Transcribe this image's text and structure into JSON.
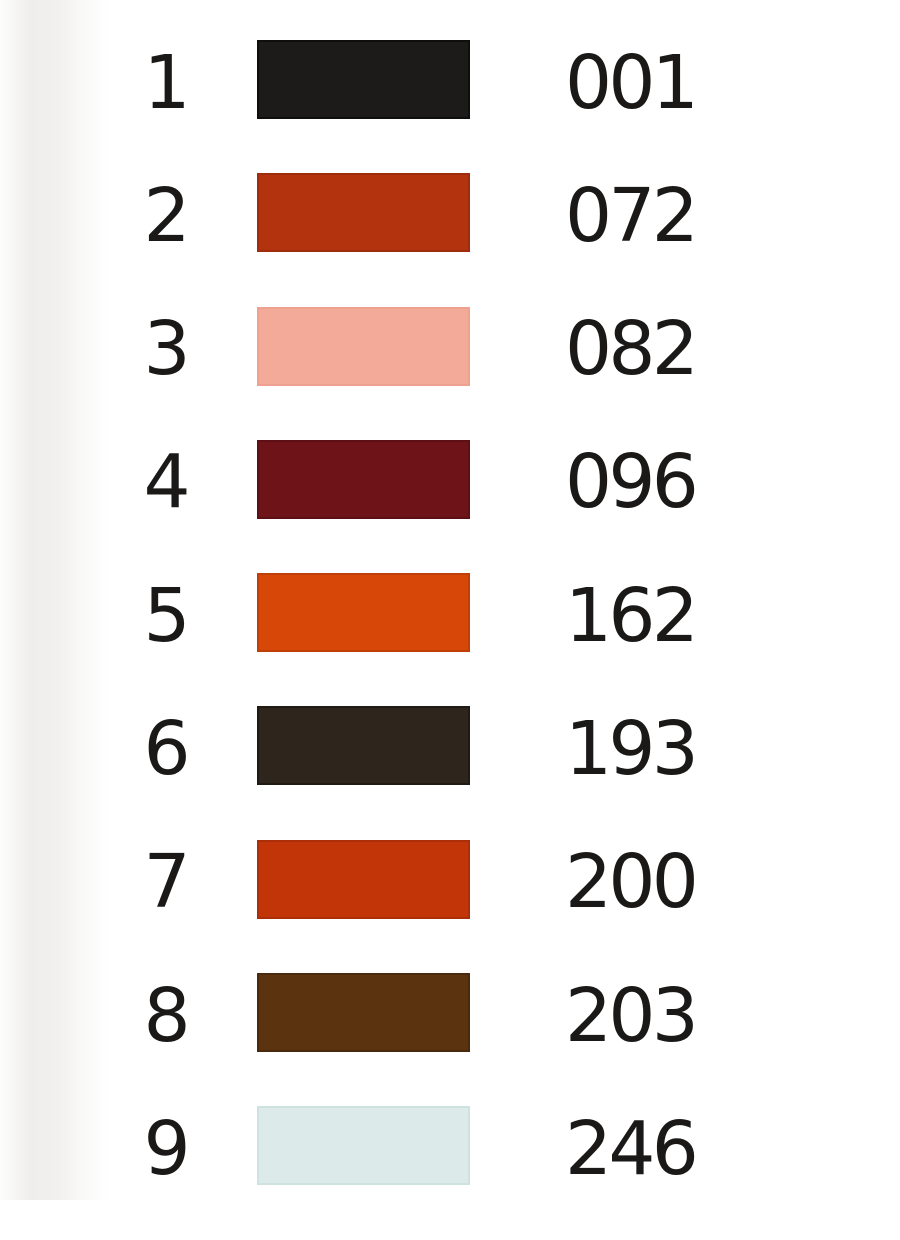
{
  "page": {
    "background": "#ffffff",
    "left_shadow_color": "#efeeec",
    "text_color": "#1a1918"
  },
  "palette": {
    "rows": [
      {
        "number": "1",
        "code": "001",
        "fill": "#1c1b19",
        "border": "#0e0e0d"
      },
      {
        "number": "2",
        "code": "072",
        "fill": "#b4330f",
        "border": "#9e2c0d"
      },
      {
        "number": "3",
        "code": "082",
        "fill": "#f3aa98",
        "border": "#eda18e"
      },
      {
        "number": "4",
        "code": "096",
        "fill": "#6e1318",
        "border": "#5c0f14"
      },
      {
        "number": "5",
        "code": "162",
        "fill": "#d64708",
        "border": "#c03f07"
      },
      {
        "number": "6",
        "code": "193",
        "fill": "#2e261d",
        "border": "#1f1a13"
      },
      {
        "number": "7",
        "code": "200",
        "fill": "#c23509",
        "border": "#ab2e08"
      },
      {
        "number": "8",
        "code": "203",
        "fill": "#5b340f",
        "border": "#4a2a0c"
      },
      {
        "number": "9",
        "code": "246",
        "fill": "#dcebe9",
        "border": "#cee2e0"
      }
    ]
  }
}
